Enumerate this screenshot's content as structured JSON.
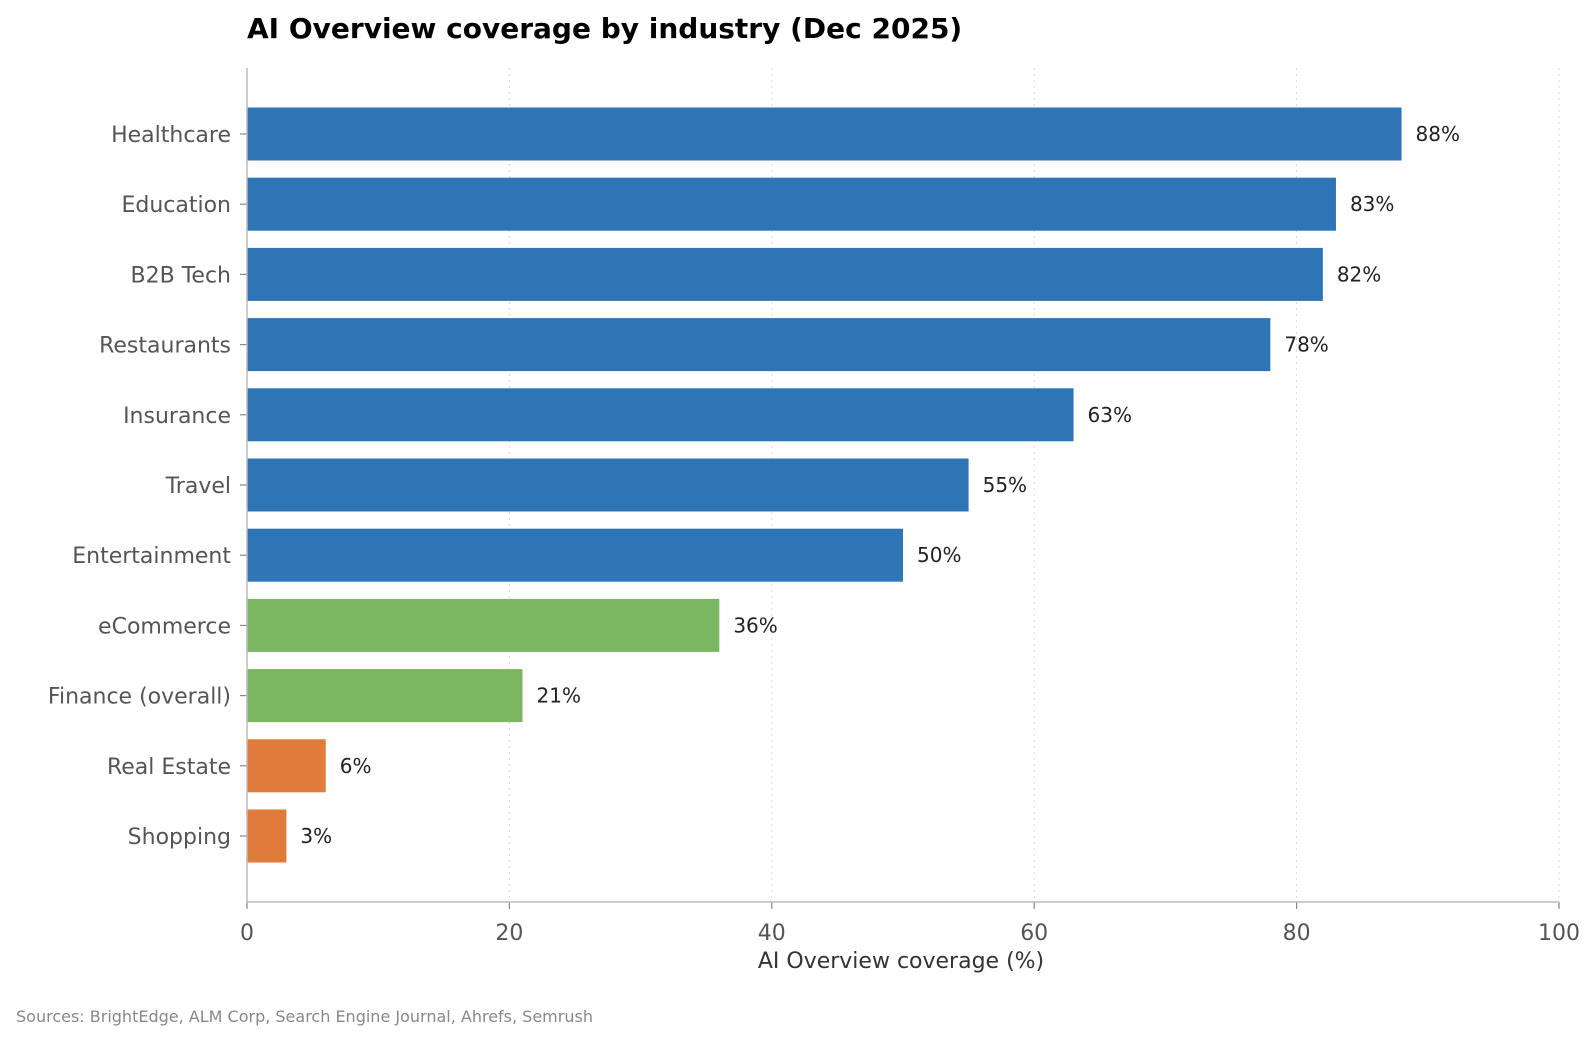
{
  "chart_data": {
    "type": "bar",
    "orientation": "horizontal",
    "title": "AI Overview coverage by industry (Dec 2025)",
    "xlabel": "AI Overview coverage (%)",
    "ylabel": "",
    "xlim": [
      0,
      100
    ],
    "xticks": [
      "0",
      "20",
      "40",
      "60",
      "80",
      "100"
    ],
    "grid": "vertical dotted",
    "categories": [
      "Healthcare",
      "Education",
      "B2B Tech",
      "Restaurants",
      "Insurance",
      "Travel",
      "Entertainment",
      "eCommerce",
      "Finance (overall)",
      "Real Estate",
      "Shopping"
    ],
    "values": [
      88,
      83,
      82,
      78,
      63,
      55,
      50,
      36,
      21,
      6,
      3
    ],
    "value_labels": [
      "88%",
      "83%",
      "82%",
      "78%",
      "63%",
      "55%",
      "50%",
      "36%",
      "21%",
      "6%",
      "3%"
    ],
    "bar_colors": [
      "#2e75b6",
      "#2e75b6",
      "#2e75b6",
      "#2e75b6",
      "#2e75b6",
      "#2e75b6",
      "#2e75b6",
      "#7bb661",
      "#7bb661",
      "#e07b39",
      "#e07b39"
    ]
  },
  "footer": {
    "sources": "Sources: BrightEdge, ALM Corp, Search Engine Journal, Ahrefs, Semrush"
  }
}
